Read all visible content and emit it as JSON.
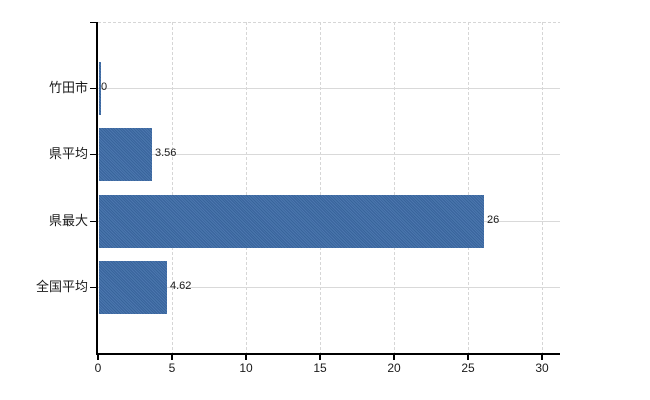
{
  "chart_data": {
    "type": "bar",
    "orientation": "horizontal",
    "title": "",
    "xlabel": "",
    "ylabel": "",
    "categories": [
      "竹田市",
      "県平均",
      "県最大",
      "全国平均"
    ],
    "values": [
      0,
      3.56,
      26,
      4.62
    ],
    "value_labels": [
      "0",
      "3.56",
      "26",
      "4.62"
    ],
    "xlim": [
      0,
      30
    ],
    "xticks": [
      0,
      5,
      10,
      15,
      20,
      25,
      30
    ],
    "grid": "on",
    "legend": "none",
    "colors": {
      "bar": "#3d6ca8",
      "grid": "#d9d9d9",
      "axis": "#000000",
      "text": "#1a1a1a",
      "background": "#ffffff"
    }
  }
}
